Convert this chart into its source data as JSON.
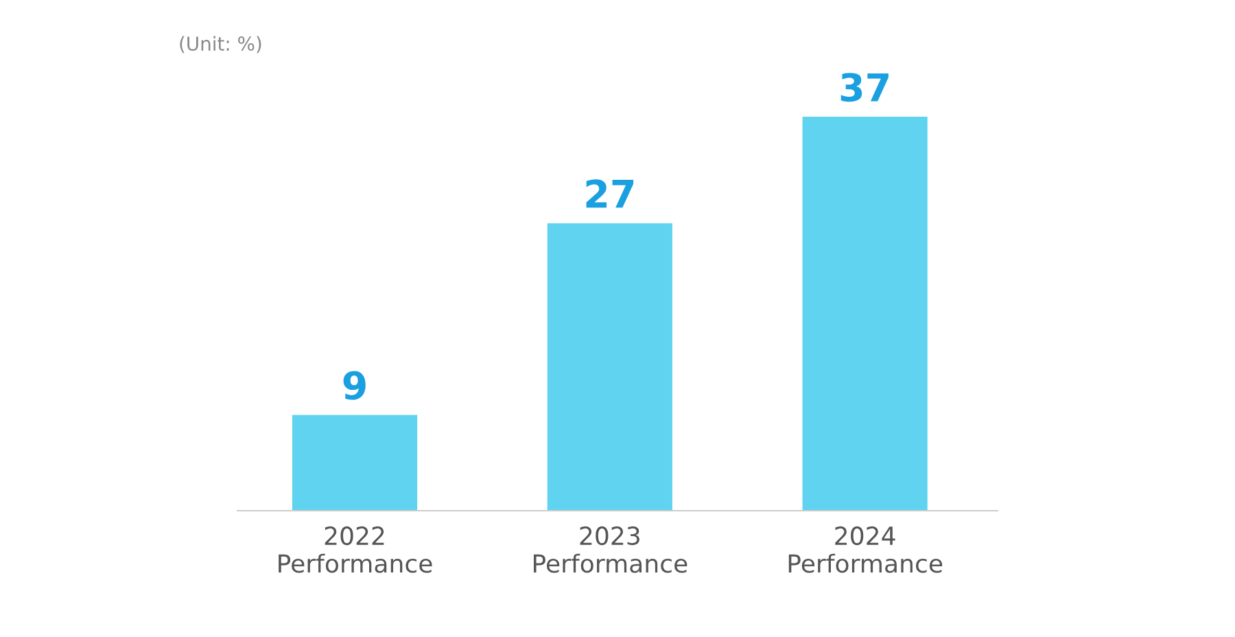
{
  "chart_data": {
    "type": "bar",
    "categories": [
      "2022\nPerformance",
      "2023\nPerformance",
      "2024\nPerformance"
    ],
    "values": [
      9,
      27,
      37
    ],
    "color": "#5fd3f0",
    "data_labels": true,
    "annotations": [
      "(Unit: %)"
    ],
    "grid": false,
    "legend": false
  }
}
